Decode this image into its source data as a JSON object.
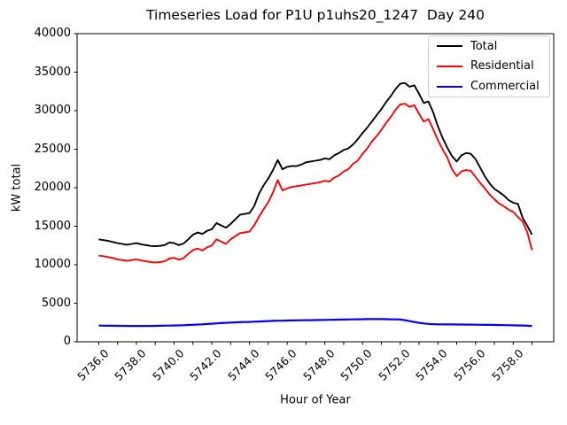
{
  "chart_data": {
    "type": "line",
    "title": "Timeseries Load for P1U p1uhs20_1247  Day 240",
    "xlabel": "Hour of Year",
    "ylabel": "kW total",
    "xlim": [
      5734.85,
      5760.15
    ],
    "ylim": [
      0,
      40000
    ],
    "grid": false,
    "legend_position": "upper right",
    "x_tick_step": 1,
    "x_labeled_ticks": [
      "5736.0",
      "5738.0",
      "5740.0",
      "5742.0",
      "5744.0",
      "5746.0",
      "5748.0",
      "5750.0",
      "5752.0",
      "5754.0",
      "5756.0",
      "5758.0"
    ],
    "y_ticks": [
      "0",
      "5000",
      "10000",
      "15000",
      "20000",
      "25000",
      "30000",
      "35000",
      "40000"
    ],
    "x": [
      5736.0,
      5736.25,
      5736.5,
      5736.75,
      5737.0,
      5737.25,
      5737.5,
      5737.75,
      5738.0,
      5738.25,
      5738.5,
      5738.75,
      5739.0,
      5739.25,
      5739.5,
      5739.75,
      5740.0,
      5740.25,
      5740.5,
      5740.75,
      5741.0,
      5741.25,
      5741.5,
      5741.75,
      5742.0,
      5742.25,
      5742.5,
      5742.75,
      5743.0,
      5743.25,
      5743.5,
      5743.75,
      5744.0,
      5744.25,
      5744.5,
      5744.75,
      5745.0,
      5745.25,
      5745.5,
      5745.75,
      5746.0,
      5746.25,
      5746.5,
      5746.75,
      5747.0,
      5747.25,
      5747.5,
      5747.75,
      5748.0,
      5748.25,
      5748.5,
      5748.75,
      5749.0,
      5749.25,
      5749.5,
      5749.75,
      5750.0,
      5750.25,
      5750.5,
      5750.75,
      5751.0,
      5751.25,
      5751.5,
      5751.75,
      5752.0,
      5752.25,
      5752.5,
      5752.75,
      5753.0,
      5753.25,
      5753.5,
      5753.75,
      5754.0,
      5754.25,
      5754.5,
      5754.75,
      5755.0,
      5755.25,
      5755.5,
      5755.75,
      5756.0,
      5756.25,
      5756.5,
      5756.75,
      5757.0,
      5757.25,
      5757.5,
      5757.75,
      5758.0,
      5758.25,
      5758.5,
      5758.75,
      5759.0
    ],
    "series": [
      {
        "name": "Total",
        "color": "#000000",
        "values": [
          13300,
          13200,
          13100,
          12950,
          12800,
          12700,
          12600,
          12700,
          12800,
          12650,
          12550,
          12450,
          12400,
          12450,
          12550,
          12900,
          12800,
          12550,
          12750,
          13300,
          13900,
          14200,
          14000,
          14400,
          14600,
          15400,
          15100,
          14800,
          15300,
          15900,
          16500,
          16600,
          16700,
          17600,
          19200,
          20300,
          21200,
          22300,
          23600,
          22400,
          22700,
          22800,
          22800,
          23000,
          23300,
          23400,
          23500,
          23600,
          23800,
          23700,
          24200,
          24500,
          24900,
          25100,
          25600,
          26300,
          27100,
          27800,
          28600,
          29400,
          30200,
          31100,
          31900,
          32800,
          33500,
          33600,
          33100,
          33300,
          32200,
          31000,
          31200,
          29800,
          28000,
          26500,
          25200,
          24100,
          23400,
          24200,
          24500,
          24400,
          23700,
          22600,
          21450,
          20550,
          19850,
          19450,
          19000,
          18400,
          18050,
          17900,
          16100,
          15050,
          13900
        ]
      },
      {
        "name": "Residential",
        "color": "#ff0000",
        "values": [
          11200,
          11100,
          11000,
          10850,
          10700,
          10600,
          10500,
          10600,
          10700,
          10550,
          10450,
          10350,
          10300,
          10350,
          10450,
          10800,
          10900,
          10650,
          10850,
          11400,
          11900,
          12100,
          11850,
          12250,
          12500,
          13300,
          13000,
          12700,
          13300,
          13700,
          14100,
          14200,
          14300,
          15100,
          16200,
          17200,
          18100,
          19400,
          21000,
          19650,
          19900,
          20100,
          20200,
          20300,
          20400,
          20500,
          20600,
          20700,
          20900,
          20800,
          21300,
          21600,
          22100,
          22400,
          23100,
          23500,
          24400,
          25100,
          26000,
          26700,
          27500,
          28400,
          29200,
          30100,
          30800,
          30900,
          30500,
          30700,
          29600,
          28600,
          28900,
          27600,
          26200,
          25000,
          23900,
          22400,
          21500,
          22100,
          22300,
          22200,
          21400,
          20600,
          19900,
          19100,
          18500,
          17950,
          17600,
          17150,
          16850,
          16200,
          15600,
          14200,
          11900
        ]
      },
      {
        "name": "Commercial",
        "color": "#0000ff",
        "values": [
          2100,
          2090,
          2080,
          2075,
          2070,
          2065,
          2060,
          2060,
          2060,
          2060,
          2060,
          2060,
          2070,
          2080,
          2090,
          2100,
          2110,
          2130,
          2150,
          2180,
          2210,
          2240,
          2270,
          2310,
          2350,
          2390,
          2420,
          2460,
          2490,
          2520,
          2540,
          2560,
          2580,
          2610,
          2630,
          2660,
          2690,
          2710,
          2730,
          2740,
          2760,
          2770,
          2780,
          2790,
          2800,
          2810,
          2820,
          2830,
          2840,
          2850,
          2860,
          2870,
          2890,
          2900,
          2910,
          2920,
          2930,
          2940,
          2940,
          2940,
          2940,
          2930,
          2920,
          2910,
          2880,
          2800,
          2680,
          2560,
          2460,
          2380,
          2320,
          2290,
          2270,
          2260,
          2250,
          2250,
          2240,
          2240,
          2230,
          2230,
          2220,
          2210,
          2200,
          2190,
          2180,
          2170,
          2160,
          2150,
          2140,
          2120,
          2110,
          2080,
          2060
        ]
      }
    ]
  }
}
